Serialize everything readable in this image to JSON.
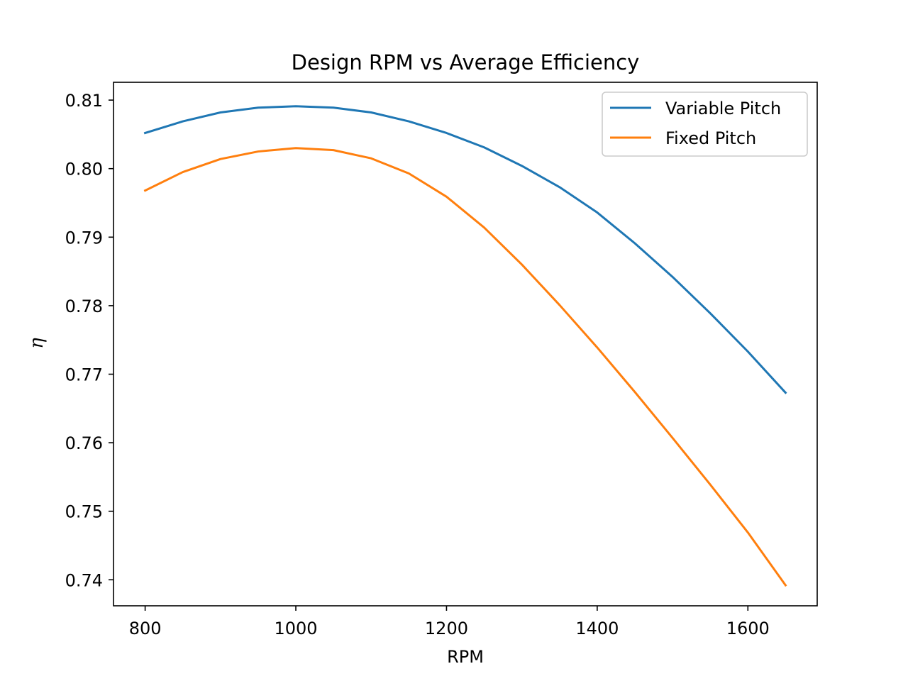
{
  "chart_data": {
    "type": "line",
    "title": "Design RPM vs Average Efficiency",
    "xlabel": "RPM",
    "ylabel": "η",
    "xlim": [
      758,
      1692
    ],
    "ylim": [
      0.7362,
      0.8126
    ],
    "xticks": [
      800,
      1000,
      1200,
      1400,
      1600
    ],
    "yticks": [
      0.74,
      0.75,
      0.76,
      0.77,
      0.78,
      0.79,
      0.8,
      0.81
    ],
    "ytick_labels": [
      "0.74",
      "0.75",
      "0.76",
      "0.77",
      "0.78",
      "0.79",
      "0.80",
      "0.81"
    ],
    "grid": false,
    "legend_position": "top-right",
    "x": [
      800,
      850,
      900,
      950,
      1000,
      1050,
      1100,
      1150,
      1200,
      1250,
      1300,
      1350,
      1400,
      1450,
      1500,
      1550,
      1600,
      1650
    ],
    "series": [
      {
        "name": "Variable Pitch",
        "color": "#1f77b4",
        "values": [
          0.8052,
          0.8069,
          0.8082,
          0.8089,
          0.8091,
          0.8089,
          0.8082,
          0.8069,
          0.8052,
          0.8031,
          0.8004,
          0.7973,
          0.7936,
          0.7891,
          0.7842,
          0.7789,
          0.7733,
          0.7673
        ]
      },
      {
        "name": "Fixed Pitch",
        "color": "#ff7f0e",
        "values": [
          0.7968,
          0.7995,
          0.8014,
          0.8025,
          0.803,
          0.8027,
          0.8015,
          0.7993,
          0.7959,
          0.7914,
          0.786,
          0.7801,
          0.7739,
          0.7674,
          0.7607,
          0.7539,
          0.7469,
          0.7392
        ]
      }
    ]
  }
}
